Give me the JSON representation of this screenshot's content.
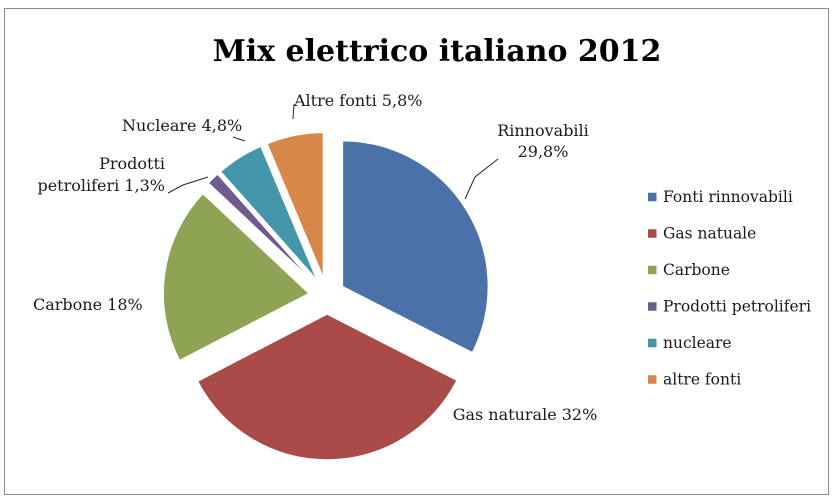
{
  "chart_data": {
    "type": "pie",
    "title": "Mix elettrico italiano 2012",
    "series": [
      {
        "name": "",
        "slices": [
          {
            "legend": "Fonti rinnovabili",
            "label_lines": [
              "Rinnovabili",
              "29,8%"
            ],
            "value": 29.8,
            "color": "#4a72a8"
          },
          {
            "legend": "Gas natuale",
            "label_lines": [
              "Gas naturale 32%"
            ],
            "value": 32,
            "color": "#a84b49"
          },
          {
            "legend": "Carbone",
            "label_lines": [
              "Carbone 18%"
            ],
            "value": 18,
            "color": "#8ea354"
          },
          {
            "legend": "Prodotti petroliferi",
            "label_lines": [
              "Prodotti",
              "petroliferi 1,3%"
            ],
            "value": 1.3,
            "color": "#715a8d"
          },
          {
            "legend": "nucleare",
            "label_lines": [
              "Nucleare 4,8%"
            ],
            "value": 4.8,
            "color": "#4497ab"
          },
          {
            "legend": "altre fonti",
            "label_lines": [
              "Altre fonti 5,8%"
            ],
            "value": 5.8,
            "color": "#d8874a"
          }
        ]
      }
    ],
    "legend_position": "right",
    "exploded": true,
    "start_direction": "12 o'clock, clockwise"
  }
}
